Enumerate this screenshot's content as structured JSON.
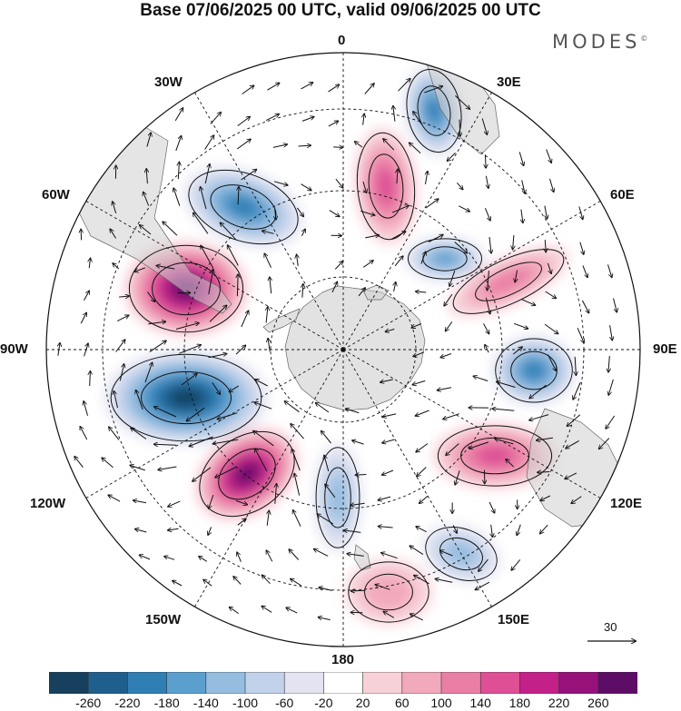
{
  "title": "Base 07/06/2025 00 UTC, valid 09/06/2025 00 UTC",
  "brand": "MODES",
  "brand_mark": "©",
  "longitude_labels": {
    "lon_0": "0",
    "lon_30e": "30E",
    "lon_60e": "60E",
    "lon_90e": "90E",
    "lon_120e": "120E",
    "lon_150e": "150E",
    "lon_180": "180",
    "lon_150w": "150W",
    "lon_120w": "120W",
    "lon_90w": "90W",
    "lon_60w": "60W",
    "lon_30w": "30W"
  },
  "wind_reference": {
    "value": "30"
  },
  "colorbar": {
    "ticks": [
      "-260",
      "-220",
      "-180",
      "-140",
      "-100",
      "-60",
      "-20",
      "20",
      "60",
      "100",
      "140",
      "180",
      "220",
      "260"
    ],
    "colors": [
      "#16405e",
      "#1f5f8e",
      "#2f7fb5",
      "#5b9fcf",
      "#94bde0",
      "#c1d2ea",
      "#e3e3f1",
      "#ffffff",
      "#f7d0d8",
      "#f2a9bc",
      "#ea7fa6",
      "#de4f95",
      "#c3208a",
      "#96127a",
      "#5e0d67"
    ]
  },
  "anomaly_centers": [
    {
      "id": "neg-30w",
      "value": -180
    },
    {
      "id": "neg-15e",
      "value": -180
    },
    {
      "id": "neg-45e",
      "value": -140
    },
    {
      "id": "neg-90e",
      "value": -180
    },
    {
      "id": "neg-100w",
      "value": -260
    },
    {
      "id": "neg-170w",
      "value": -100
    },
    {
      "id": "neg-155e",
      "value": -100
    },
    {
      "id": "pos-70w",
      "value": 260
    },
    {
      "id": "pos-130w",
      "value": 260
    },
    {
      "id": "pos-10e",
      "value": 140
    },
    {
      "id": "pos-70e",
      "value": 100
    },
    {
      "id": "pos-120e",
      "value": 140
    },
    {
      "id": "pos-170e",
      "value": 60
    }
  ]
}
